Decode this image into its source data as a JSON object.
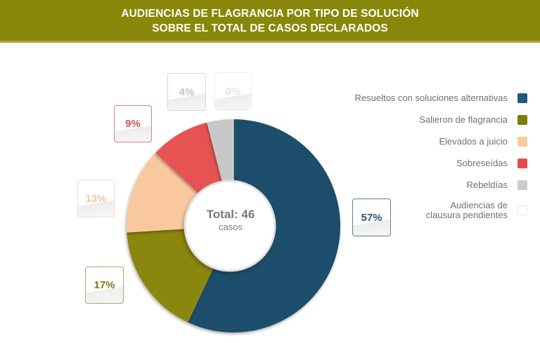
{
  "header": {
    "title_line1": "AUDIENCIAS DE FLAGRANCIA POR TIPO DE SOLUCIÓN",
    "title_line2": "SOBRE EL TOTAL DE CASOS DECLARADOS"
  },
  "center": {
    "total": "Total: 46",
    "unit": "casos"
  },
  "legend": [
    {
      "label": "Resueltos con soluciones alternativas",
      "color": "#1f4e6b"
    },
    {
      "label": "Salieron de flagrancia",
      "color": "#898709"
    },
    {
      "label": "Elevados a juicio",
      "color": "#f9c89e"
    },
    {
      "label": "Sobreseídas",
      "color": "#e55353"
    },
    {
      "label": "Rebeldías",
      "color": "#c8c8c8"
    },
    {
      "label": "Audiencias de clausura pendientes",
      "color": "#ffffff"
    }
  ],
  "labels": {
    "resueltos": "57%",
    "salieron": "17%",
    "elevados": "13%",
    "sobreseidas": "9%",
    "rebeldias": "4%",
    "pendientes": "0%"
  },
  "chart_data": {
    "type": "pie",
    "title": "AUDIENCIAS DE FLAGRANCIA POR TIPO DE SOLUCIÓN SOBRE EL TOTAL DE CASOS DECLARADOS",
    "center_text": "Total: 46 casos",
    "categories": [
      "Resueltos con soluciones alternativas",
      "Salieron de flagrancia",
      "Elevados a juicio",
      "Sobreseídas",
      "Rebeldías",
      "Audiencias de clausura pendientes"
    ],
    "values": [
      57,
      17,
      13,
      9,
      4,
      0
    ],
    "unit": "%",
    "colors": [
      "#1f4e6b",
      "#898709",
      "#f9c89e",
      "#e55353",
      "#c8c8c8",
      "#ffffff"
    ],
    "legend_position": "right",
    "donut": true
  }
}
